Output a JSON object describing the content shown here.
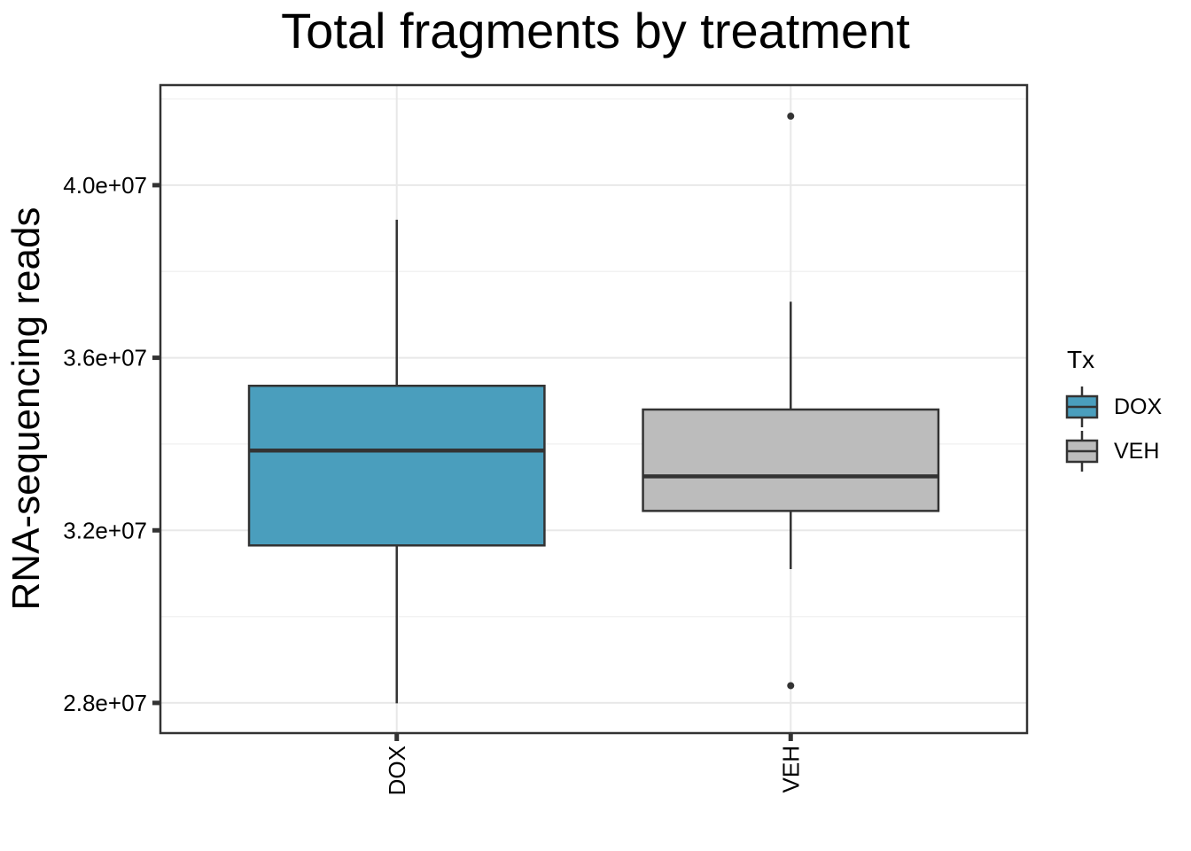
{
  "title": "Total fragments by treatment",
  "y_axis_title": "RNA-sequencing reads",
  "legend": {
    "title": "Tx",
    "entries": [
      {
        "label": "DOX",
        "fill": "#4A9EBD"
      },
      {
        "label": "VEH",
        "fill": "#BCBCBC"
      }
    ]
  },
  "colors": {
    "dox_fill": "#4A9EBD",
    "veh_fill": "#BCBCBC",
    "box_outline": "#333333",
    "panel_border": "#333333",
    "gridline_major": "#E8E8E8",
    "gridline_minor": "#F2F2F2",
    "tick": "#333333",
    "text": "#000000",
    "background": "#FFFFFF"
  },
  "chart_data": {
    "type": "boxplot",
    "title": "Total fragments by treatment",
    "xlabel": "",
    "ylabel": "RNA-sequencing reads",
    "categories": [
      "DOX",
      "VEH"
    ],
    "y_axis": {
      "domain": [
        27300000,
        42320000
      ],
      "major_ticks": [
        28000000,
        32000000,
        36000000,
        40000000
      ],
      "major_tick_labels": [
        "2.8e+07",
        "3.2e+07",
        "3.6e+07",
        "4.0e+07"
      ],
      "minor_gridlines": [
        30000000,
        34000000,
        38000000,
        42000000
      ],
      "grid": true
    },
    "legend_position": "right",
    "series": [
      {
        "name": "DOX",
        "fill": "#4A9EBD",
        "stats": {
          "whisker_low": 27990000,
          "q1": 31650000,
          "median": 33850000,
          "q3": 35350000,
          "whisker_high": 39200000
        },
        "outliers": []
      },
      {
        "name": "VEH",
        "fill": "#BCBCBC",
        "stats": {
          "whisker_low": 31100000,
          "q1": 32450000,
          "median": 33250000,
          "q3": 34800000,
          "whisker_high": 37300000
        },
        "outliers": [
          41600000,
          28400000
        ]
      }
    ]
  }
}
